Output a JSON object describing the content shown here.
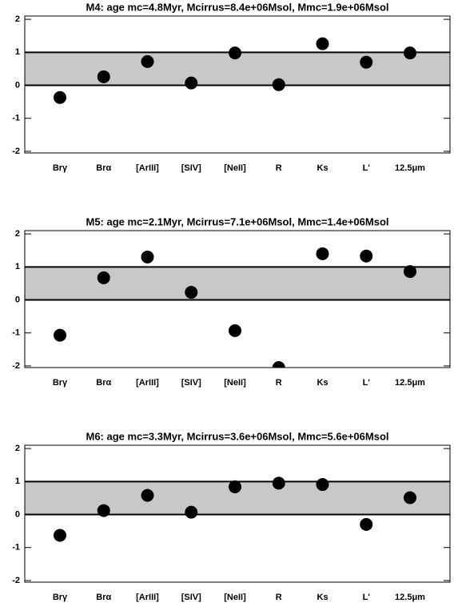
{
  "chart_data": [
    {
      "type": "scatter",
      "title": "M4: age mc=4.8Myr, Mcirrus=8.4e+06Msol, Mmc=1.9e+06Msol",
      "categories": [
        "Brγ",
        "Brα",
        "[ArIII]",
        "[SIV]",
        "[NeII]",
        "R",
        "Ks",
        "L'",
        "12.5μm"
      ],
      "values": [
        -0.37,
        0.26,
        0.72,
        0.07,
        0.98,
        0.02,
        1.26,
        0.7,
        0.98
      ],
      "color": "#000000",
      "band": [
        0,
        1
      ],
      "band_color": "#c8c8c8",
      "ylim": [
        -2.05,
        2.1
      ],
      "yticks": [
        2,
        1,
        0,
        -1,
        -2
      ]
    },
    {
      "type": "scatter",
      "title": "M5: age mc=2.1Myr, Mcirrus=7.1e+06Msol, Mmc=1.4e+06Msol",
      "categories": [
        "Brγ",
        "Brα",
        "[ArIII]",
        "[SIV]",
        "[NeII]",
        "R",
        "Ks",
        "L'",
        "12.5μm"
      ],
      "values": [
        -1.07,
        0.67,
        1.3,
        0.23,
        -0.93,
        -2.05,
        1.4,
        1.33,
        0.86
      ],
      "color": "#000000",
      "band": [
        0,
        1
      ],
      "band_color": "#c8c8c8",
      "ylim": [
        -2.05,
        2.1
      ],
      "yticks": [
        2,
        1,
        0,
        -1,
        -2
      ]
    },
    {
      "type": "scatter",
      "title": "M6: age mc=3.3Myr, Mcirrus=3.6e+06Msol, Mmc=5.6e+06Msol",
      "categories": [
        "Brγ",
        "Brα",
        "[ArIII]",
        "[SIV]",
        "[NeII]",
        "R",
        "Ks",
        "L'",
        "12.5μm"
      ],
      "values": [
        -0.63,
        0.12,
        0.58,
        0.07,
        0.84,
        0.95,
        0.91,
        -0.3,
        0.51
      ],
      "color": "#000000",
      "band": [
        0,
        1
      ],
      "band_color": "#c8c8c8",
      "ylim": [
        -2.05,
        2.1
      ],
      "yticks": [
        2,
        1,
        0,
        -1,
        -2
      ]
    }
  ]
}
